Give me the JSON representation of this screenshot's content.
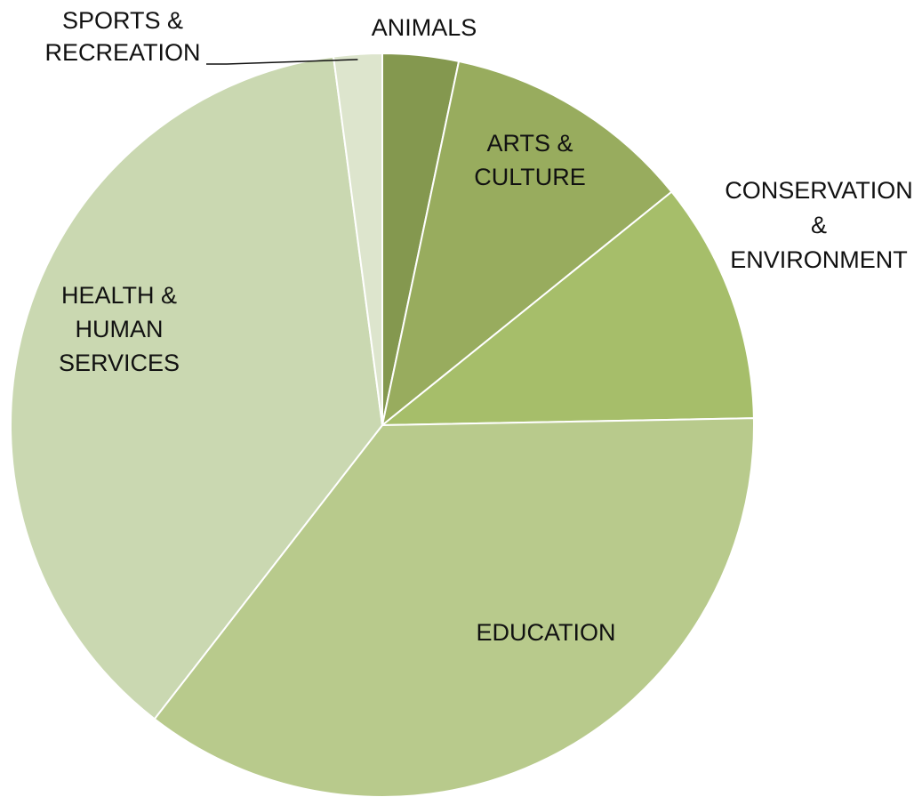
{
  "chart_data": {
    "type": "pie",
    "title": "",
    "start_angle_deg": 0,
    "direction": "clockwise",
    "legend": "none",
    "labels_on_chart": true,
    "categories": [
      "ANIMALS",
      "ARTS & CULTURE",
      "CONSERVATION & ENVIRONMENT",
      "EDUCATION",
      "HEALTH & HUMAN SERVICES",
      "SPORTS & RECREATION"
    ],
    "values": [
      3.3,
      10.9,
      10.5,
      35.8,
      37.4,
      2.1
    ],
    "colors": [
      "#84984F",
      "#98AC5E",
      "#A6BE6A",
      "#B8CA8C",
      "#CAD8B1",
      "#DDE5CD"
    ],
    "label_lines": [
      [
        "ANIMALS"
      ],
      [
        "ARTS &",
        "CULTURE"
      ],
      [
        "CONSERVATION",
        "&",
        "ENVIRONMENT"
      ],
      [
        "EDUCATION"
      ],
      [
        "HEALTH &",
        "HUMAN",
        "SERVICES"
      ],
      [
        "SPORTS &",
        "RECREATION"
      ]
    ]
  }
}
